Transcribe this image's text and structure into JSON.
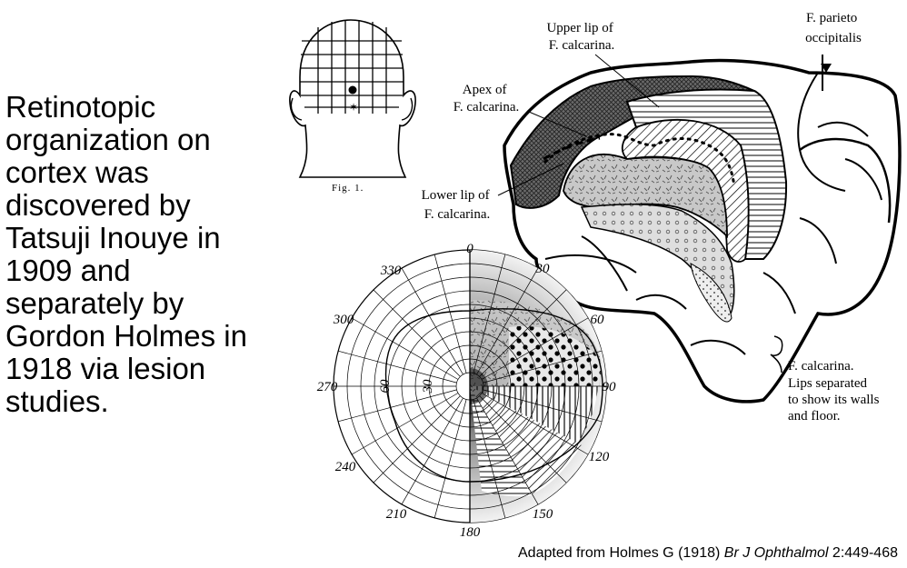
{
  "main_text": [
    "Retinotopic",
    "organization on",
    "cortex was",
    "discovered by",
    "Tatsuji Inouye in",
    "1909 and",
    "separately by",
    "Gordon Holmes in",
    "1918 via lesion",
    "studies."
  ],
  "citation": {
    "prefix": "Adapted from Holmes G (1918) ",
    "journal": "Br J Ophthalmol",
    "suffix": " 2:449-468"
  },
  "head_figure": {
    "caption": "Fig. 1."
  },
  "brain_labels": {
    "upper_lip": [
      "Upper lip of",
      "F. calcarina."
    ],
    "apex": [
      "Apex of",
      "F. calcarina."
    ],
    "lower_lip": [
      "Lower lip of",
      "F. calcarina."
    ],
    "parieto": [
      "F. parieto",
      "occipitalis"
    ],
    "calcarina": [
      "F. calcarina.",
      "Lips separated",
      "to show its walls",
      "and floor."
    ]
  },
  "polar_plot": {
    "angle_labels": [
      "0",
      "30",
      "60",
      "90",
      "120",
      "150",
      "180",
      "210",
      "240",
      "270",
      "300",
      "330"
    ],
    "radial_labels": [
      "30",
      "60"
    ]
  }
}
